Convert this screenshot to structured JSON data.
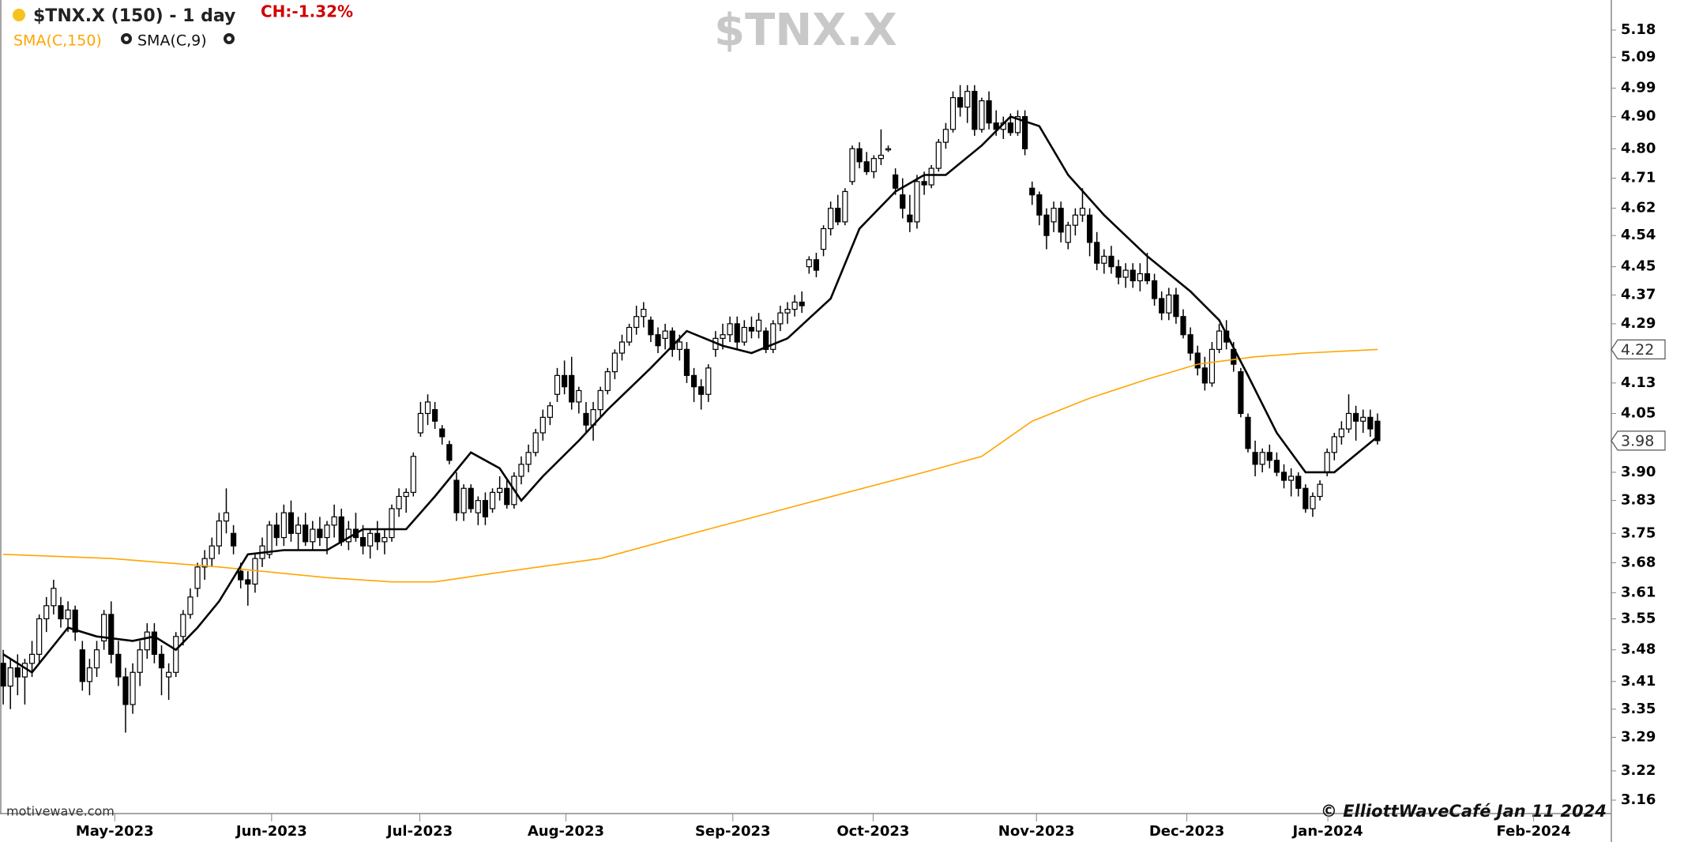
{
  "chart_data": {
    "type": "candlestick",
    "title": "$TNX.X (150) - 1 day",
    "change": "CH:-1.32%",
    "watermark": "$TNX.X",
    "source": "motivewave.com",
    "credit": "© ElliottWaveCafé Jan 11 2024",
    "up_color": "#ffffff",
    "down_color": "#000000",
    "log_y": true,
    "ylim": [
      3.16,
      5.18
    ],
    "yticks": [
      5.18,
      5.09,
      4.99,
      {
        "value": 4.9,
        "label": "4.90"
      },
      {
        "value": 4.8,
        "label": "4.80"
      },
      4.71,
      4.62,
      4.54,
      4.45,
      4.37,
      4.29,
      4.13,
      4.05,
      {
        "value": 3.9,
        "label": "3.90"
      },
      3.83,
      3.75,
      3.68,
      3.61,
      3.55,
      3.48,
      3.41,
      3.35,
      3.29,
      3.22,
      3.16
    ],
    "xlim": [
      -0.45,
      223.5
    ],
    "xticks": [
      {
        "value": 15.5,
        "label": "May-2023"
      },
      {
        "value": 37.3,
        "label": "Jun-2023"
      },
      {
        "value": 57.9,
        "label": "Jul-2023"
      },
      {
        "value": 78.2,
        "label": "Aug-2023"
      },
      {
        "value": 101.4,
        "label": "Sep-2023"
      },
      {
        "value": 120.9,
        "label": "Oct-2023"
      },
      {
        "value": 143.6,
        "label": "Nov-2023"
      },
      {
        "value": 164.5,
        "label": "Dec-2023"
      },
      {
        "value": 184.1,
        "label": "Jan-2024"
      },
      {
        "value": 212.7,
        "label": "Feb-2024"
      }
    ],
    "last_values": [
      4.22,
      3.98
    ],
    "ohlc": [
      [
        3.45,
        3.48,
        3.36,
        3.4
      ],
      [
        3.4,
        3.46,
        3.35,
        3.44
      ],
      [
        3.44,
        3.47,
        3.38,
        3.42
      ],
      [
        3.42,
        3.46,
        3.36,
        3.45
      ],
      [
        3.45,
        3.5,
        3.42,
        3.47
      ],
      [
        3.47,
        3.56,
        3.45,
        3.55
      ],
      [
        3.55,
        3.6,
        3.52,
        3.58
      ],
      [
        3.58,
        3.64,
        3.56,
        3.62
      ],
      [
        3.58,
        3.6,
        3.53,
        3.55
      ],
      [
        3.55,
        3.59,
        3.52,
        3.57
      ],
      [
        3.57,
        3.58,
        3.5,
        3.52
      ],
      [
        3.48,
        3.5,
        3.39,
        3.41
      ],
      [
        3.41,
        3.46,
        3.38,
        3.44
      ],
      [
        3.44,
        3.5,
        3.42,
        3.48
      ],
      [
        3.5,
        3.57,
        3.48,
        3.56
      ],
      [
        3.56,
        3.59,
        3.45,
        3.47
      ],
      [
        3.47,
        3.5,
        3.4,
        3.42
      ],
      [
        3.42,
        3.44,
        3.3,
        3.36
      ],
      [
        3.36,
        3.45,
        3.34,
        3.43
      ],
      [
        3.43,
        3.5,
        3.4,
        3.48
      ],
      [
        3.48,
        3.54,
        3.46,
        3.52
      ],
      [
        3.52,
        3.54,
        3.45,
        3.47
      ],
      [
        3.47,
        3.49,
        3.38,
        3.44
      ],
      [
        3.42,
        3.45,
        3.37,
        3.43
      ],
      [
        3.43,
        3.52,
        3.42,
        3.51
      ],
      [
        3.51,
        3.57,
        3.49,
        3.56
      ],
      [
        3.56,
        3.62,
        3.55,
        3.6
      ],
      [
        3.62,
        3.68,
        3.6,
        3.67
      ],
      [
        3.67,
        3.71,
        3.64,
        3.69
      ],
      [
        3.69,
        3.74,
        3.67,
        3.72
      ],
      [
        3.72,
        3.8,
        3.7,
        3.78
      ],
      [
        3.78,
        3.86,
        3.75,
        3.8
      ],
      [
        3.75,
        3.77,
        3.7,
        3.72
      ],
      [
        3.66,
        3.68,
        3.62,
        3.64
      ],
      [
        3.64,
        3.66,
        3.58,
        3.63
      ],
      [
        3.63,
        3.7,
        3.61,
        3.69
      ],
      [
        3.69,
        3.74,
        3.67,
        3.72
      ],
      [
        3.7,
        3.78,
        3.69,
        3.77
      ],
      [
        3.77,
        3.8,
        3.72,
        3.74
      ],
      [
        3.74,
        3.82,
        3.72,
        3.8
      ],
      [
        3.8,
        3.83,
        3.73,
        3.75
      ],
      [
        3.75,
        3.79,
        3.71,
        3.77
      ],
      [
        3.77,
        3.8,
        3.72,
        3.73
      ],
      [
        3.73,
        3.78,
        3.71,
        3.76
      ],
      [
        3.76,
        3.79,
        3.72,
        3.74
      ],
      [
        3.74,
        3.78,
        3.7,
        3.77
      ],
      [
        3.77,
        3.82,
        3.74,
        3.79
      ],
      [
        3.79,
        3.81,
        3.72,
        3.73
      ],
      [
        3.73,
        3.78,
        3.71,
        3.76
      ],
      [
        3.76,
        3.8,
        3.73,
        3.74
      ],
      [
        3.74,
        3.77,
        3.7,
        3.72
      ],
      [
        3.72,
        3.76,
        3.69,
        3.75
      ],
      [
        3.75,
        3.78,
        3.71,
        3.73
      ],
      [
        3.73,
        3.76,
        3.7,
        3.74
      ],
      [
        3.74,
        3.82,
        3.73,
        3.81
      ],
      [
        3.81,
        3.86,
        3.79,
        3.84
      ],
      [
        3.84,
        3.86,
        3.8,
        3.85
      ],
      [
        3.85,
        3.95,
        3.84,
        3.94
      ],
      [
        4.0,
        4.08,
        3.99,
        4.05
      ],
      [
        4.05,
        4.1,
        4.02,
        4.08
      ],
      [
        4.06,
        4.08,
        4.01,
        4.03
      ],
      [
        4.01,
        4.02,
        3.97,
        3.99
      ],
      [
        3.97,
        3.98,
        3.92,
        3.93
      ],
      [
        3.88,
        3.9,
        3.78,
        3.8
      ],
      [
        3.8,
        3.87,
        3.78,
        3.86
      ],
      [
        3.86,
        3.87,
        3.8,
        3.81
      ],
      [
        3.8,
        3.84,
        3.77,
        3.83
      ],
      [
        3.83,
        3.85,
        3.77,
        3.79
      ],
      [
        3.81,
        3.86,
        3.8,
        3.85
      ],
      [
        3.85,
        3.89,
        3.83,
        3.86
      ],
      [
        3.86,
        3.88,
        3.81,
        3.82
      ],
      [
        3.82,
        3.9,
        3.81,
        3.89
      ],
      [
        3.89,
        3.94,
        3.87,
        3.92
      ],
      [
        3.92,
        3.97,
        3.9,
        3.95
      ],
      [
        3.95,
        4.01,
        3.94,
        4.0
      ],
      [
        4.0,
        4.06,
        3.98,
        4.04
      ],
      [
        4.04,
        4.08,
        4.02,
        4.07
      ],
      [
        4.1,
        4.17,
        4.08,
        4.15
      ],
      [
        4.15,
        4.19,
        4.1,
        4.12
      ],
      [
        4.15,
        4.2,
        4.06,
        4.08
      ],
      [
        4.08,
        4.12,
        4.05,
        4.11
      ],
      [
        4.05,
        4.08,
        4.0,
        4.02
      ],
      [
        4.02,
        4.08,
        3.98,
        4.06
      ],
      [
        4.06,
        4.12,
        4.04,
        4.11
      ],
      [
        4.11,
        4.17,
        4.1,
        4.16
      ],
      [
        4.16,
        4.22,
        4.14,
        4.21
      ],
      [
        4.21,
        4.26,
        4.19,
        4.24
      ],
      [
        4.24,
        4.29,
        4.23,
        4.28
      ],
      [
        4.28,
        4.34,
        4.26,
        4.31
      ],
      [
        4.31,
        4.35,
        4.28,
        4.33
      ],
      [
        4.3,
        4.31,
        4.24,
        4.26
      ],
      [
        4.26,
        4.28,
        4.21,
        4.23
      ],
      [
        4.25,
        4.29,
        4.22,
        4.27
      ],
      [
        4.27,
        4.28,
        4.2,
        4.22
      ],
      [
        4.22,
        4.26,
        4.19,
        4.24
      ],
      [
        4.22,
        4.24,
        4.13,
        4.15
      ],
      [
        4.15,
        4.17,
        4.08,
        4.12
      ],
      [
        4.12,
        4.14,
        4.06,
        4.1
      ],
      [
        4.1,
        4.18,
        4.08,
        4.17
      ],
      [
        4.22,
        4.27,
        4.2,
        4.25
      ],
      [
        4.25,
        4.29,
        4.22,
        4.26
      ],
      [
        4.26,
        4.31,
        4.24,
        4.29
      ],
      [
        4.29,
        4.31,
        4.22,
        4.24
      ],
      [
        4.24,
        4.3,
        4.23,
        4.28
      ],
      [
        4.28,
        4.31,
        4.25,
        4.27
      ],
      [
        4.27,
        4.32,
        4.25,
        4.3
      ],
      [
        4.27,
        4.28,
        4.21,
        4.22
      ],
      [
        4.22,
        4.3,
        4.21,
        4.29
      ],
      [
        4.29,
        4.34,
        4.27,
        4.32
      ],
      [
        4.32,
        4.35,
        4.29,
        4.33
      ],
      [
        4.33,
        4.37,
        4.31,
        4.35
      ],
      [
        4.35,
        4.38,
        4.32,
        4.34
      ],
      [
        4.45,
        4.48,
        4.43,
        4.47
      ],
      [
        4.47,
        4.49,
        4.42,
        4.44
      ],
      [
        4.5,
        4.57,
        4.48,
        4.56
      ],
      [
        4.56,
        4.64,
        4.54,
        4.62
      ],
      [
        4.62,
        4.66,
        4.57,
        4.58
      ],
      [
        4.58,
        4.68,
        4.57,
        4.67
      ],
      [
        4.7,
        4.81,
        4.69,
        4.8
      ],
      [
        4.8,
        4.82,
        4.74,
        4.76
      ],
      [
        4.76,
        4.79,
        4.72,
        4.73
      ],
      [
        4.73,
        4.78,
        4.71,
        4.77
      ],
      [
        4.77,
        4.86,
        4.75,
        4.78
      ],
      [
        4.8,
        4.81,
        4.79,
        4.8
      ],
      [
        4.72,
        4.74,
        4.66,
        4.68
      ],
      [
        4.66,
        4.71,
        4.59,
        4.62
      ],
      [
        4.6,
        4.66,
        4.55,
        4.58
      ],
      [
        4.58,
        4.72,
        4.56,
        4.7
      ],
      [
        4.7,
        4.73,
        4.66,
        4.69
      ],
      [
        4.69,
        4.75,
        4.68,
        4.74
      ],
      [
        4.74,
        4.83,
        4.73,
        4.82
      ],
      [
        4.82,
        4.88,
        4.8,
        4.86
      ],
      [
        4.86,
        4.98,
        4.85,
        4.96
      ],
      [
        4.96,
        5.0,
        4.9,
        4.93
      ],
      [
        4.93,
        5.0,
        4.88,
        4.98
      ],
      [
        4.98,
        5.0,
        4.84,
        4.86
      ],
      [
        4.86,
        4.96,
        4.85,
        4.95
      ],
      [
        4.95,
        4.98,
        4.86,
        4.88
      ],
      [
        4.88,
        4.92,
        4.84,
        4.86
      ],
      [
        4.86,
        4.9,
        4.83,
        4.88
      ],
      [
        4.88,
        4.91,
        4.84,
        4.85
      ],
      [
        4.85,
        4.92,
        4.84,
        4.9
      ],
      [
        4.9,
        4.92,
        4.78,
        4.8
      ],
      [
        4.68,
        4.7,
        4.63,
        4.66
      ],
      [
        4.66,
        4.67,
        4.57,
        4.6
      ],
      [
        4.6,
        4.62,
        4.5,
        4.54
      ],
      [
        4.58,
        4.64,
        4.55,
        4.62
      ],
      [
        4.62,
        4.64,
        4.52,
        4.55
      ],
      [
        4.52,
        4.58,
        4.5,
        4.57
      ],
      [
        4.57,
        4.62,
        4.54,
        4.6
      ],
      [
        4.6,
        4.68,
        4.58,
        4.62
      ],
      [
        4.6,
        4.62,
        4.48,
        4.52
      ],
      [
        4.52,
        4.55,
        4.44,
        4.46
      ],
      [
        4.46,
        4.5,
        4.43,
        4.48
      ],
      [
        4.48,
        4.51,
        4.43,
        4.45
      ],
      [
        4.45,
        4.47,
        4.4,
        4.42
      ],
      [
        4.42,
        4.46,
        4.39,
        4.44
      ],
      [
        4.44,
        4.46,
        4.39,
        4.41
      ],
      [
        4.41,
        4.46,
        4.38,
        4.43
      ],
      [
        4.43,
        4.49,
        4.4,
        4.41
      ],
      [
        4.41,
        4.43,
        4.34,
        4.36
      ],
      [
        4.36,
        4.38,
        4.3,
        4.32
      ],
      [
        4.32,
        4.39,
        4.3,
        4.37
      ],
      [
        4.37,
        4.39,
        4.29,
        4.31
      ],
      [
        4.31,
        4.33,
        4.25,
        4.26
      ],
      [
        4.26,
        4.28,
        4.19,
        4.21
      ],
      [
        4.21,
        4.23,
        4.15,
        4.17
      ],
      [
        4.17,
        4.2,
        4.11,
        4.13
      ],
      [
        4.13,
        4.24,
        4.12,
        4.22
      ],
      [
        4.22,
        4.29,
        4.21,
        4.27
      ],
      [
        4.27,
        4.3,
        4.22,
        4.24
      ],
      [
        4.22,
        4.24,
        4.16,
        4.18
      ],
      [
        4.16,
        4.17,
        4.04,
        4.05
      ],
      [
        4.04,
        4.05,
        3.95,
        3.96
      ],
      [
        3.95,
        3.98,
        3.89,
        3.92
      ],
      [
        3.92,
        3.96,
        3.9,
        3.95
      ],
      [
        3.95,
        3.97,
        3.91,
        3.93
      ],
      [
        3.93,
        3.95,
        3.89,
        3.9
      ],
      [
        3.9,
        3.92,
        3.86,
        3.88
      ],
      [
        3.88,
        3.91,
        3.84,
        3.89
      ],
      [
        3.89,
        3.9,
        3.84,
        3.86
      ],
      [
        3.86,
        3.87,
        3.8,
        3.81
      ],
      [
        3.81,
        3.85,
        3.79,
        3.84
      ],
      [
        3.84,
        3.88,
        3.83,
        3.87
      ],
      [
        3.9,
        3.96,
        3.89,
        3.95
      ],
      [
        3.95,
        4.0,
        3.93,
        3.99
      ],
      [
        3.99,
        4.03,
        3.97,
        4.01
      ],
      [
        4.01,
        4.1,
        4.0,
        4.05
      ],
      [
        4.05,
        4.07,
        3.98,
        4.03
      ],
      [
        4.03,
        4.06,
        4.0,
        4.04
      ],
      [
        4.04,
        4.06,
        3.99,
        4.01
      ],
      [
        4.03,
        4.05,
        3.97,
        3.98
      ]
    ],
    "series": [
      {
        "name": "SMA(C,150)",
        "color": "#ffa500",
        "x": [
          0,
          15,
          30,
          45,
          54,
          60,
          68,
          83,
          98,
          113,
          128,
          136,
          143,
          151,
          159,
          166,
          174,
          181,
          191
        ],
        "values": [
          3.7,
          3.69,
          3.67,
          3.645,
          3.635,
          3.635,
          3.655,
          3.69,
          3.76,
          3.83,
          3.9,
          3.94,
          4.03,
          4.09,
          4.14,
          4.18,
          4.2,
          4.21,
          4.22
        ]
      },
      {
        "name": "SMA(C,9)",
        "color": "#000000",
        "x": [
          0,
          4,
          9,
          13,
          18,
          21,
          24,
          27,
          30,
          34,
          39,
          45,
          50,
          56,
          60,
          65,
          69,
          72,
          75,
          80,
          84,
          90,
          95,
          100,
          104,
          109,
          115,
          119,
          124,
          128,
          131,
          136,
          140,
          144,
          148,
          153,
          159,
          165,
          169,
          173,
          177,
          181,
          185,
          191
        ],
        "values": [
          3.47,
          3.43,
          3.53,
          3.51,
          3.5,
          3.51,
          3.48,
          3.53,
          3.59,
          3.7,
          3.71,
          3.71,
          3.76,
          3.76,
          3.84,
          3.95,
          3.91,
          3.83,
          3.89,
          3.98,
          4.06,
          4.17,
          4.27,
          4.23,
          4.21,
          4.25,
          4.36,
          4.56,
          4.67,
          4.72,
          4.72,
          4.81,
          4.9,
          4.87,
          4.72,
          4.6,
          4.48,
          4.38,
          4.3,
          4.15,
          4.0,
          3.9,
          3.9,
          3.99
        ]
      }
    ]
  }
}
